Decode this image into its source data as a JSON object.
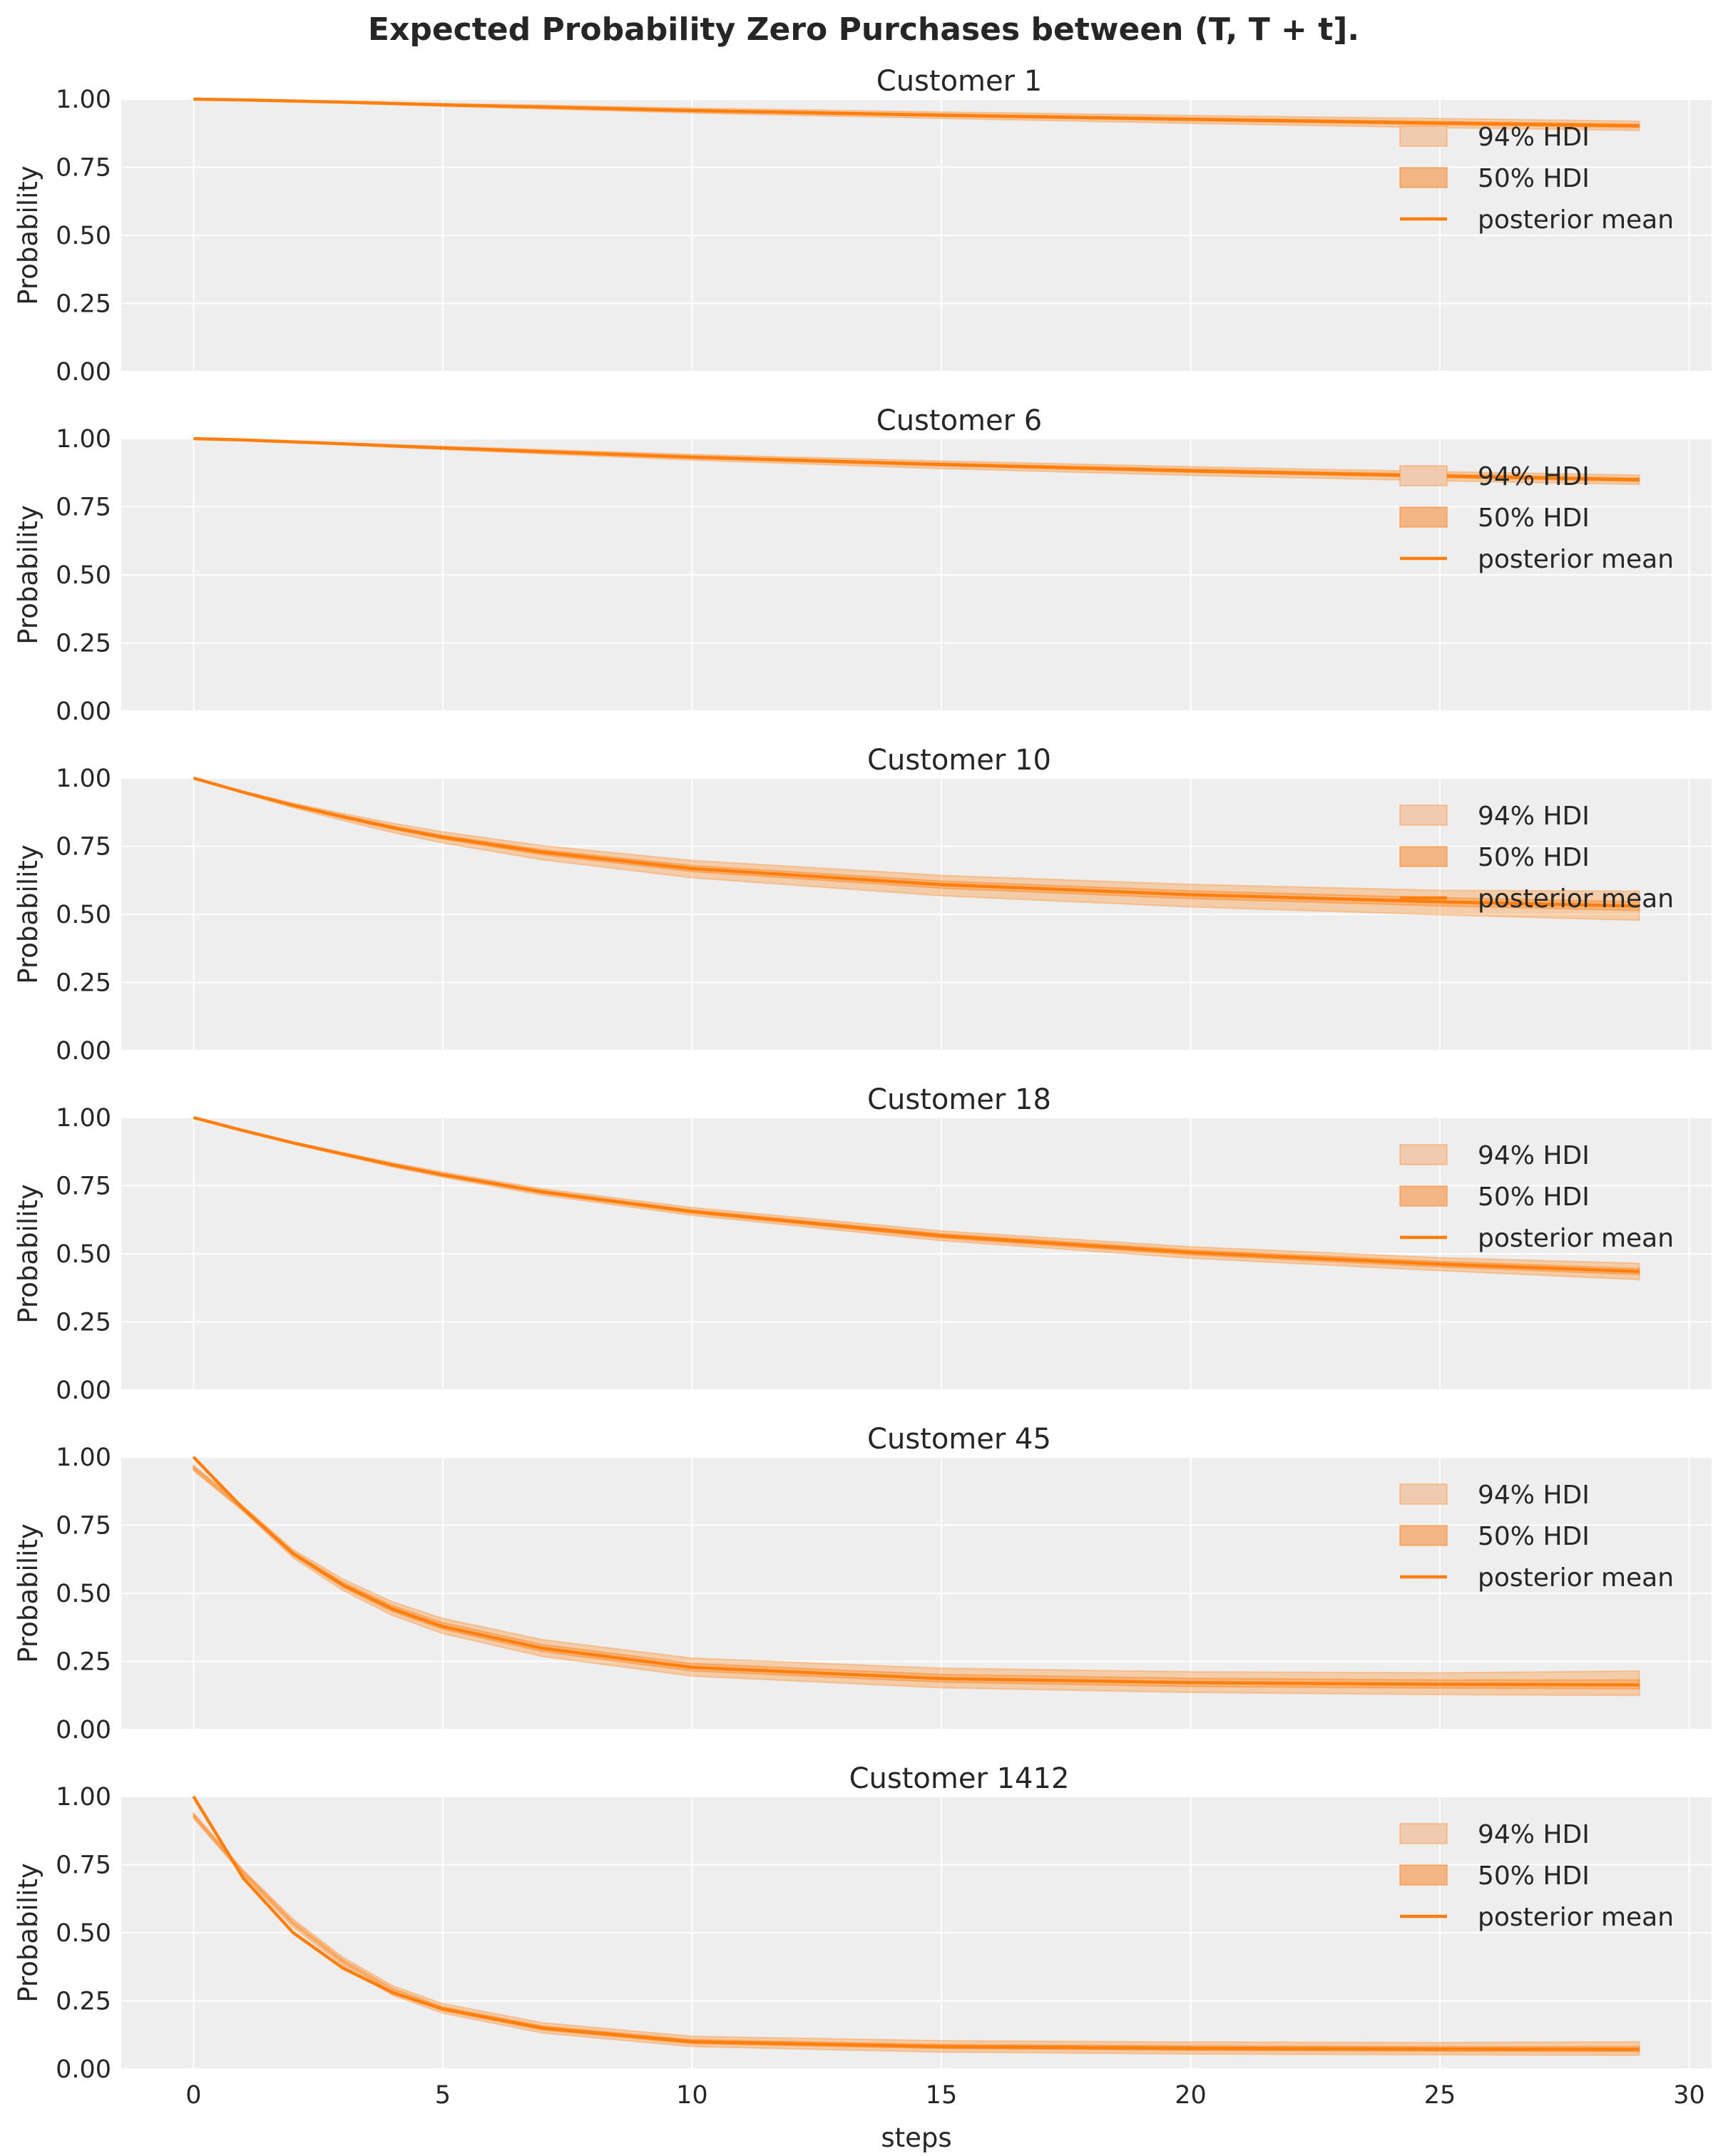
{
  "chart_data": {
    "type": "line",
    "title": "Expected Probability Zero Purchases between (T, T + t].",
    "xlabel": "steps",
    "ylabel": "Probability",
    "xlim": [
      -1.45,
      30.45
    ],
    "ylim": [
      0,
      1
    ],
    "xticks": [
      "0",
      "5",
      "10",
      "15",
      "20",
      "25",
      "30"
    ],
    "yticks": [
      "0.00",
      "0.25",
      "0.50",
      "0.75",
      "1.00"
    ],
    "grid": true,
    "legend": {
      "placement": "upper-right",
      "entries": [
        "94% HDI",
        "50% HDI",
        "posterior mean"
      ]
    },
    "colors": {
      "line": "#ff7f0e",
      "hdi94": "#f0cbaf",
      "hdi50": "#f3b584",
      "background": "#eeeeee",
      "grid": "#ffffff"
    },
    "x": [
      0,
      1,
      2,
      3,
      4,
      5,
      7,
      10,
      15,
      20,
      25,
      29
    ],
    "panels": [
      {
        "title": "Customer 1",
        "mean": [
          1,
          0.997,
          0.993,
          0.989,
          0.984,
          0.979,
          0.971,
          0.958,
          0.941,
          0.926,
          0.912,
          0.902
        ],
        "hdi94_low": [
          1,
          0.996,
          0.991,
          0.986,
          0.98,
          0.974,
          0.964,
          0.949,
          0.929,
          0.911,
          0.895,
          0.885
        ],
        "hdi94_high": [
          1,
          0.998,
          0.995,
          0.992,
          0.988,
          0.984,
          0.978,
          0.967,
          0.953,
          0.94,
          0.929,
          0.919
        ],
        "hdi50_low": [
          1,
          0.996,
          0.992,
          0.988,
          0.982,
          0.977,
          0.968,
          0.955,
          0.937,
          0.921,
          0.906,
          0.896
        ],
        "hdi50_high": [
          1,
          0.997,
          0.994,
          0.99,
          0.986,
          0.981,
          0.974,
          0.961,
          0.945,
          0.931,
          0.918,
          0.908
        ]
      },
      {
        "title": "Customer 6",
        "mean": [
          1,
          0.995,
          0.988,
          0.981,
          0.973,
          0.966,
          0.952,
          0.932,
          0.905,
          0.882,
          0.863,
          0.849
        ],
        "hdi94_low": [
          1,
          0.994,
          0.986,
          0.977,
          0.968,
          0.96,
          0.944,
          0.921,
          0.89,
          0.865,
          0.845,
          0.832
        ],
        "hdi94_high": [
          1,
          0.996,
          0.99,
          0.984,
          0.978,
          0.972,
          0.96,
          0.942,
          0.918,
          0.897,
          0.879,
          0.866
        ],
        "hdi50_low": [
          1,
          0.995,
          0.987,
          0.979,
          0.971,
          0.963,
          0.949,
          0.928,
          0.9,
          0.876,
          0.857,
          0.843
        ],
        "hdi50_high": [
          1,
          0.996,
          0.989,
          0.982,
          0.975,
          0.969,
          0.955,
          0.936,
          0.91,
          0.888,
          0.869,
          0.855
        ]
      },
      {
        "title": "Customer 10",
        "mean": [
          1,
          0.948,
          0.9,
          0.858,
          0.818,
          0.783,
          0.728,
          0.668,
          0.609,
          0.572,
          0.546,
          0.53
        ],
        "hdi94_low": [
          1,
          0.944,
          0.891,
          0.844,
          0.8,
          0.762,
          0.7,
          0.634,
          0.568,
          0.527,
          0.498,
          0.478
        ],
        "hdi94_high": [
          1,
          0.952,
          0.908,
          0.87,
          0.834,
          0.803,
          0.752,
          0.698,
          0.643,
          0.61,
          0.588,
          0.585
        ],
        "hdi50_low": [
          1,
          0.947,
          0.897,
          0.853,
          0.812,
          0.776,
          0.719,
          0.657,
          0.596,
          0.558,
          0.531,
          0.514
        ],
        "hdi50_high": [
          1,
          0.95,
          0.903,
          0.863,
          0.824,
          0.79,
          0.737,
          0.679,
          0.622,
          0.586,
          0.561,
          0.546
        ]
      },
      {
        "title": "Customer 18",
        "mean": [
          1,
          0.952,
          0.907,
          0.866,
          0.826,
          0.79,
          0.727,
          0.655,
          0.566,
          0.505,
          0.462,
          0.435
        ],
        "hdi94_low": [
          1,
          0.95,
          0.903,
          0.86,
          0.818,
          0.781,
          0.715,
          0.641,
          0.548,
          0.484,
          0.438,
          0.405
        ],
        "hdi94_high": [
          1,
          0.954,
          0.911,
          0.872,
          0.834,
          0.8,
          0.739,
          0.67,
          0.584,
          0.526,
          0.486,
          0.465
        ],
        "hdi50_low": [
          1,
          0.951,
          0.905,
          0.863,
          0.823,
          0.786,
          0.722,
          0.649,
          0.558,
          0.496,
          0.452,
          0.424
        ],
        "hdi50_high": [
          1,
          0.953,
          0.909,
          0.869,
          0.829,
          0.794,
          0.732,
          0.661,
          0.574,
          0.514,
          0.472,
          0.446
        ]
      },
      {
        "title": "Customer 45",
        "mean": [
          1,
          0.81,
          0.645,
          0.53,
          0.442,
          0.378,
          0.298,
          0.228,
          0.187,
          0.172,
          0.166,
          0.164
        ],
        "hdi94_low": [
          0.95,
          0.8,
          0.63,
          0.51,
          0.418,
          0.352,
          0.268,
          0.196,
          0.153,
          0.136,
          0.128,
          0.125
        ],
        "hdi94_high": [
          0.97,
          0.82,
          0.66,
          0.552,
          0.468,
          0.408,
          0.33,
          0.262,
          0.225,
          0.212,
          0.208,
          0.215
        ],
        "hdi50_low": [
          0.955,
          0.805,
          0.64,
          0.522,
          0.432,
          0.368,
          0.286,
          0.215,
          0.174,
          0.158,
          0.152,
          0.15
        ],
        "hdi50_high": [
          0.965,
          0.815,
          0.652,
          0.54,
          0.454,
          0.392,
          0.312,
          0.242,
          0.202,
          0.188,
          0.182,
          0.182
        ]
      },
      {
        "title": "Customer 1412",
        "mean": [
          1,
          0.7,
          0.5,
          0.37,
          0.28,
          0.22,
          0.15,
          0.1,
          0.082,
          0.076,
          0.073,
          0.072
        ],
        "hdi94_low": [
          0.92,
          0.71,
          0.52,
          0.38,
          0.27,
          0.205,
          0.132,
          0.082,
          0.062,
          0.055,
          0.052,
          0.05
        ],
        "hdi94_high": [
          0.94,
          0.73,
          0.55,
          0.41,
          0.305,
          0.24,
          0.17,
          0.12,
          0.104,
          0.099,
          0.097,
          0.1
        ],
        "hdi50_low": [
          0.925,
          0.715,
          0.53,
          0.39,
          0.282,
          0.215,
          0.143,
          0.093,
          0.075,
          0.068,
          0.065,
          0.064
        ],
        "hdi50_high": [
          0.935,
          0.725,
          0.54,
          0.4,
          0.295,
          0.228,
          0.158,
          0.108,
          0.09,
          0.085,
          0.082,
          0.082
        ]
      }
    ]
  }
}
